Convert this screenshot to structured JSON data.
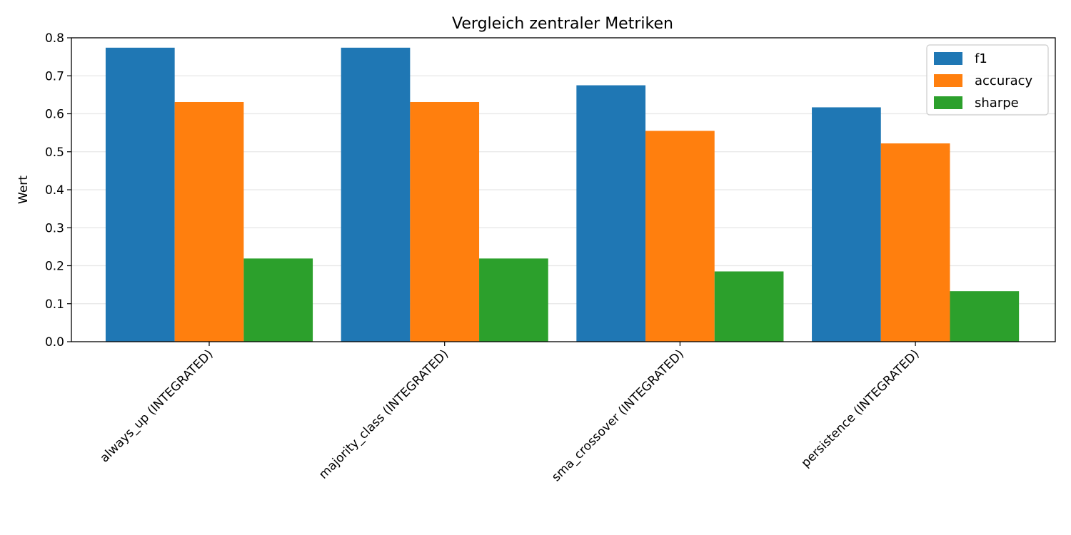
{
  "chart_data": {
    "type": "bar",
    "title": "Vergleich zentraler Metriken",
    "xlabel": "",
    "ylabel": "Wert",
    "ylim": [
      0,
      0.8
    ],
    "yticks": [
      "0.0",
      "0.1",
      "0.2",
      "0.3",
      "0.4",
      "0.5",
      "0.6",
      "0.7",
      "0.8"
    ],
    "grid": "horizontal",
    "legend_position": "top-right",
    "categories": [
      "always_up (INTEGRATED)",
      "majority_class (INTEGRATED)",
      "sma_crossover (INTEGRATED)",
      "persistence (INTEGRATED)"
    ],
    "series": [
      {
        "name": "f1",
        "color": "#1f77b4",
        "values": [
          0.774,
          0.774,
          0.675,
          0.617
        ]
      },
      {
        "name": "accuracy",
        "color": "#ff7f0e",
        "values": [
          0.631,
          0.631,
          0.555,
          0.522
        ]
      },
      {
        "name": "sharpe",
        "color": "#2ca02c",
        "values": [
          0.219,
          0.219,
          0.185,
          0.133
        ]
      }
    ]
  }
}
